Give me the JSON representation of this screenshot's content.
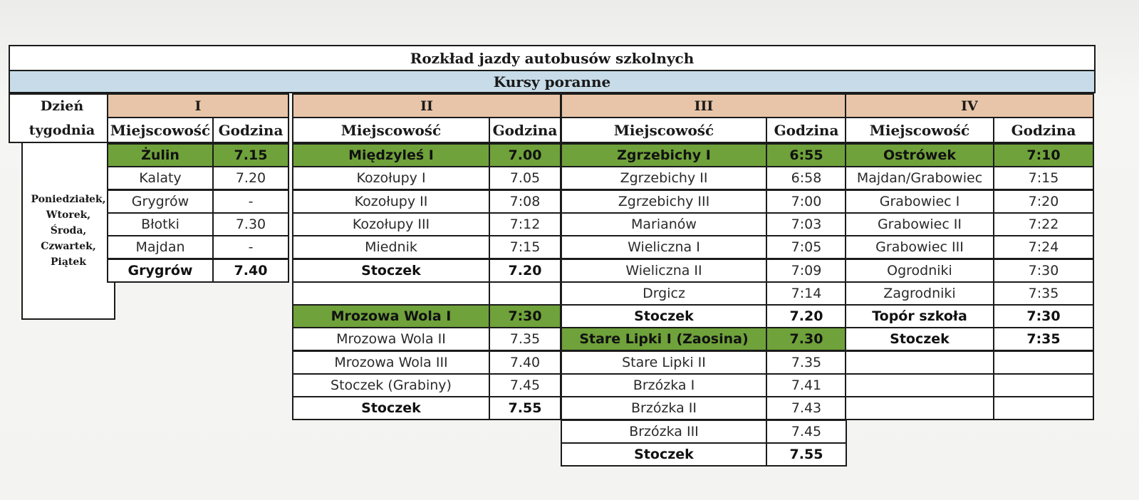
{
  "title": "Rozkład jazdy autobusów szkolnych",
  "subtitle": "Kursy poranne",
  "day_header": [
    "Dzień",
    "tygodnia"
  ],
  "days": [
    "Poniedziałek,",
    "Wtorek,",
    "Środa,",
    "Czwartek,",
    "Piątek"
  ],
  "col_place": "Miejscowość",
  "col_time": "Godzina",
  "routes": [
    {
      "name": "I",
      "stops": [
        {
          "place": "Żulin",
          "time": "7.15",
          "kind": "start"
        },
        {
          "place": "Kalaty",
          "time": "7.20",
          "kind": ""
        },
        {
          "place": "Grygrów",
          "time": "-",
          "kind": ""
        },
        {
          "place": "Błotki",
          "time": "7.30",
          "kind": ""
        },
        {
          "place": "Majdan",
          "time": "-",
          "kind": ""
        },
        {
          "place": "Grygrów",
          "time": "7.40",
          "kind": "end"
        }
      ]
    },
    {
      "name": "II",
      "stops": [
        {
          "place": "Międzyleś I",
          "time": "7.00",
          "kind": "start"
        },
        {
          "place": "Kozołupy I",
          "time": "7.05",
          "kind": ""
        },
        {
          "place": "Kozołupy II",
          "time": "7:08",
          "kind": ""
        },
        {
          "place": "Kozołupy III",
          "time": "7:12",
          "kind": ""
        },
        {
          "place": "Miednik",
          "time": "7:15",
          "kind": ""
        },
        {
          "place": "Stoczek",
          "time": "7.20",
          "kind": "end"
        },
        {
          "place": "",
          "time": "",
          "kind": "blank"
        },
        {
          "place": "Mrozowa Wola I",
          "time": "7:30",
          "kind": "start"
        },
        {
          "place": "Mrozowa Wola II",
          "time": "7.35",
          "kind": ""
        },
        {
          "place": "Mrozowa Wola III",
          "time": "7.40",
          "kind": ""
        },
        {
          "place": "Stoczek (Grabiny)",
          "time": "7.45",
          "kind": ""
        },
        {
          "place": "Stoczek",
          "time": "7.55",
          "kind": "end"
        }
      ]
    },
    {
      "name": "III",
      "stops": [
        {
          "place": "Zgrzebichy I",
          "time": "6:55",
          "kind": "start"
        },
        {
          "place": "Zgrzebichy II",
          "time": "6:58",
          "kind": ""
        },
        {
          "place": "Zgrzebichy III",
          "time": "7:00",
          "kind": ""
        },
        {
          "place": "Marianów",
          "time": "7:03",
          "kind": ""
        },
        {
          "place": "Wieliczna I",
          "time": "7:05",
          "kind": ""
        },
        {
          "place": "Wieliczna II",
          "time": "7:09",
          "kind": ""
        },
        {
          "place": "Drgicz",
          "time": "7:14",
          "kind": ""
        },
        {
          "place": "Stoczek",
          "time": "7.20",
          "kind": "end"
        },
        {
          "place": "Stare Lipki I (Zaosina)",
          "time": "7.30",
          "kind": "start"
        },
        {
          "place": "Stare Lipki II",
          "time": "7.35",
          "kind": ""
        },
        {
          "place": "Brzózka I",
          "time": "7.41",
          "kind": ""
        },
        {
          "place": "Brzózka II",
          "time": "7.43",
          "kind": ""
        },
        {
          "place": "Brzózka III",
          "time": "7.45",
          "kind": ""
        },
        {
          "place": "Stoczek",
          "time": "7.55",
          "kind": "end"
        }
      ]
    },
    {
      "name": "IV",
      "stops": [
        {
          "place": "Ostrówek",
          "time": "7:10",
          "kind": "start"
        },
        {
          "place": "Majdan/Grabowiec",
          "time": "7:15",
          "kind": ""
        },
        {
          "place": "Grabowiec I",
          "time": "7:20",
          "kind": ""
        },
        {
          "place": "Grabowiec II",
          "time": "7:22",
          "kind": ""
        },
        {
          "place": "Grabowiec III",
          "time": "7:24",
          "kind": ""
        },
        {
          "place": "Ogrodniki",
          "time": "7:30",
          "kind": ""
        },
        {
          "place": "Zagrodniki",
          "time": "7:35",
          "kind": ""
        },
        {
          "place": "Topór szkoła",
          "time": "7:30",
          "kind": "end"
        },
        {
          "place": "Stoczek",
          "time": "7:35",
          "kind": "end"
        },
        {
          "place": "",
          "time": "",
          "kind": "blank"
        },
        {
          "place": "",
          "time": "",
          "kind": "blank"
        },
        {
          "place": "",
          "time": "",
          "kind": "blank"
        }
      ]
    }
  ]
}
